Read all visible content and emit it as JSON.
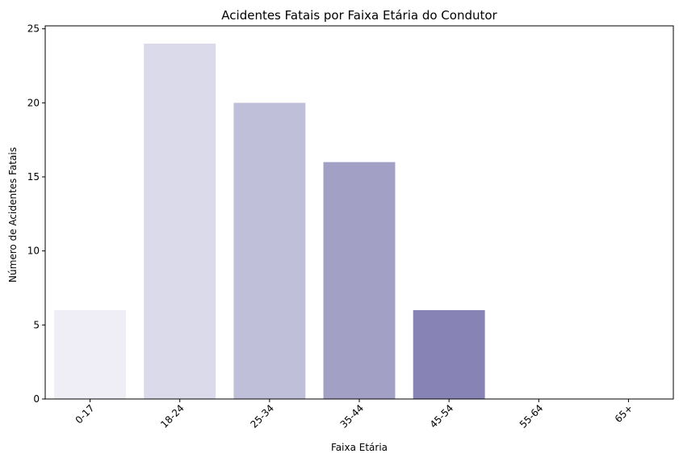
{
  "chart_data": {
    "type": "bar",
    "title": "Acidentes Fatais por Faixa Etária do Condutor",
    "xlabel": "Faixa Etária",
    "ylabel": "Número de Acidentes Fatais",
    "categories": [
      "0-17",
      "18-24",
      "25-34",
      "35-44",
      "45-54",
      "55-64",
      "65+"
    ],
    "values": [
      6,
      24,
      20,
      16,
      6,
      0,
      0
    ],
    "ylim": [
      0,
      25.2
    ],
    "yticks": [
      0,
      5,
      10,
      15,
      20,
      25
    ],
    "colors": [
      "#efedf5",
      "#dadaea",
      "#bfbfd9",
      "#a3a0c5",
      "#8784b5",
      "#6b5fa6",
      "#54278f"
    ],
    "grid": false,
    "legend": "none"
  }
}
